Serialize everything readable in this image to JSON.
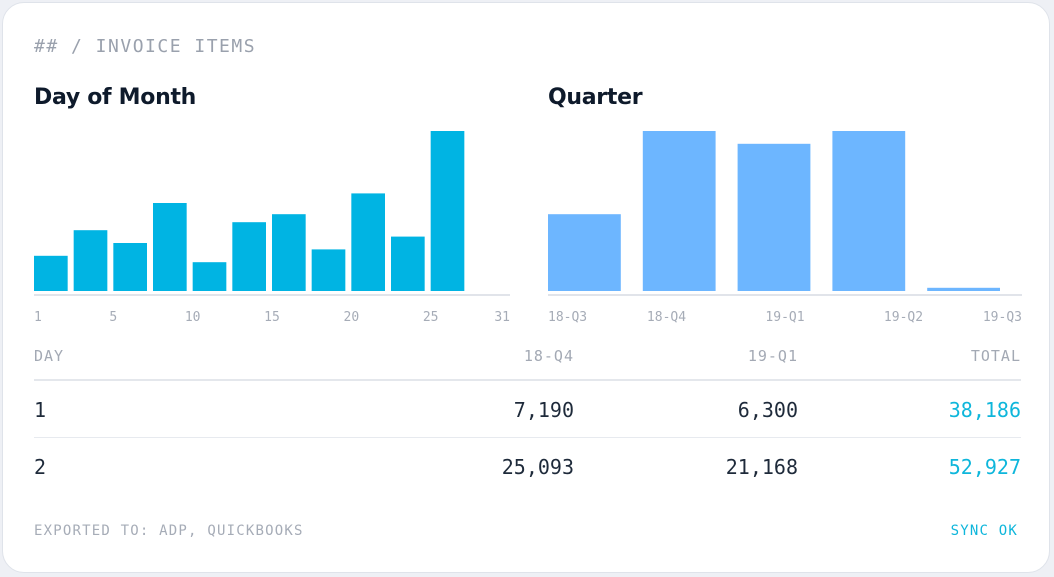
{
  "card": {
    "section_title": "## / INVOICE ITEMS",
    "footer_left": "EXPORTED TO: ADP, QUICKBOOKS",
    "footer_right": "SYNC OK"
  },
  "chart_data": [
    {
      "type": "bar",
      "title": "Day of Month",
      "color": "#00b4e3",
      "categories": [
        "1",
        "3",
        "5",
        "8",
        "10",
        "13",
        "15",
        "18",
        "20",
        "23",
        "25",
        "31"
      ],
      "values": [
        22,
        38,
        30,
        55,
        18,
        43,
        48,
        26,
        61,
        34,
        100,
        0
      ],
      "tick_labels": [
        "1",
        "5",
        "10",
        "15",
        "20",
        "25",
        "31"
      ],
      "ylim": [
        0,
        100
      ]
    },
    {
      "type": "bar",
      "title": "Quarter",
      "color": "#6db6ff",
      "categories": [
        "18-Q3",
        "18-Q4",
        "19-Q1",
        "19-Q2",
        "19-Q3"
      ],
      "values": [
        48,
        100,
        92,
        100,
        2
      ],
      "tick_labels": [
        "18-Q3",
        "18-Q4",
        "19-Q1",
        "19-Q2",
        "19-Q3"
      ],
      "ylim": [
        0,
        100
      ]
    }
  ],
  "table": {
    "headers": {
      "day": "DAY",
      "q4": "18-Q4",
      "q1": "19-Q1",
      "total": "TOTAL"
    },
    "rows": [
      {
        "day": "1",
        "q4": "7,190",
        "q1": "6,300",
        "total": "38,186"
      },
      {
        "day": "2",
        "q4": "25,093",
        "q1": "21,168",
        "total": "52,927"
      }
    ]
  },
  "colors": {
    "accent": "#0eb6db",
    "day_bar": "#00b4e3",
    "quarter_bar": "#6db6ff"
  }
}
